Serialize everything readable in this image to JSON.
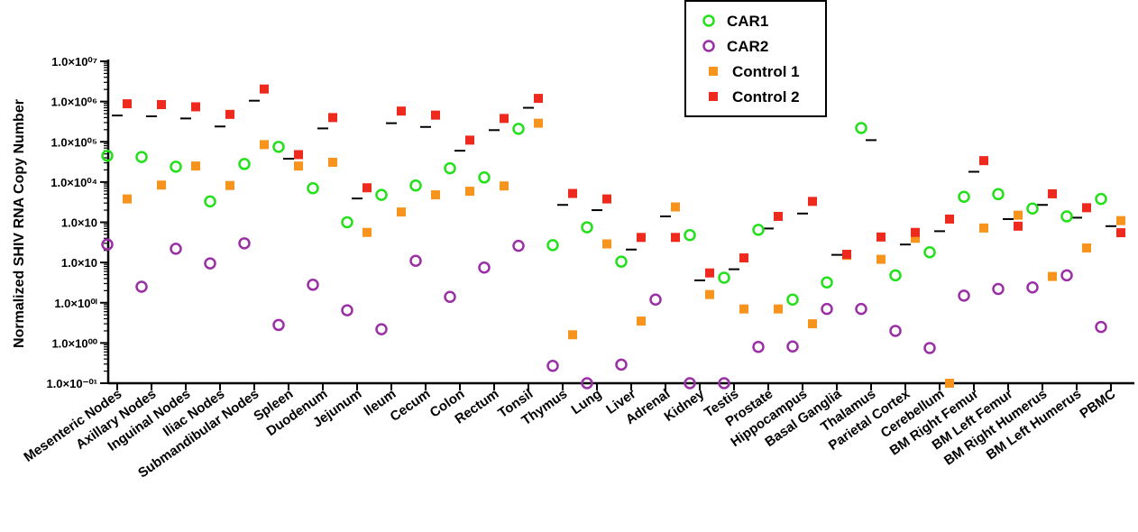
{
  "chart_data": {
    "type": "scatter",
    "title": "",
    "xlabel": "",
    "ylabel": "Normalized SHIV RNA Copy Number",
    "y_scale": "log",
    "ylim": [
      0.1,
      10000000
    ],
    "y_ticks": [
      "1.0×10⁰⁷",
      "1.0×10⁰⁶",
      "1.0×10⁰⁵",
      "1.0×10⁰⁴",
      "1.0×10⁰⁳",
      "1.0×10⁰⁲",
      "1.0×10⁰ⁱ",
      "1.0×10⁰⁰",
      "1.0×10⁻⁰¹"
    ],
    "y_tick_labels": [
      "1.0×10⁰⁷",
      "1.0×10⁰⁶",
      "1.0×10⁰⁵",
      "1.0×10⁰⁴",
      "1.0×10⁰⁳",
      "1.0×10⁰⁲",
      "1.0×10⁰ⁱ",
      "1.0×10⁰⁰",
      "1.0×10⁻⁰¹"
    ],
    "legend_position": "top-center",
    "categories": [
      "Mesenteric Nodes",
      "Axillary Nodes",
      "Inguinal Nodes",
      "Iliac Nodes",
      "Submandibular Nodes",
      "Spleen",
      "Duodenum",
      "Jejunum",
      "Ileum",
      "Cecum",
      "Colon",
      "Rectum",
      "Tonsil",
      "Thymus",
      "Lung",
      "Liver",
      "Adrenal",
      "Kidney",
      "Testis",
      "Prostate",
      "Hippocampus",
      "Basal Ganglia",
      "Thalamus",
      "Parietal Cortex",
      "Cerebellum",
      "BM Right Femur",
      "BM Left Femur",
      "BM Right Humerus",
      "BM Left Humerus",
      "PBMC"
    ],
    "series": [
      {
        "name": "CAR1",
        "marker": "circle",
        "color": "#22e01a",
        "values": [
          45000,
          42000,
          24000,
          3300,
          28000,
          75000,
          7000,
          1000,
          4800,
          8200,
          22000,
          13000,
          210000,
          270,
          750,
          105,
          null,
          480,
          42,
          650,
          12,
          32,
          220000,
          48,
          180,
          4300,
          5000,
          2200,
          1400,
          3800
        ]
      },
      {
        "name": "CAR2",
        "marker": "circle",
        "color": "#9a2fa6",
        "values": [
          280,
          25,
          220,
          95,
          300,
          2.8,
          28,
          6.5,
          2.2,
          110,
          14,
          75,
          260,
          0.27,
          0.1,
          0.29,
          12,
          0.1,
          0.1,
          0.8,
          0.82,
          7,
          7,
          2,
          0.75,
          15,
          22,
          24,
          48,
          2.5
        ]
      },
      {
        "name": "Control 1",
        "marker": "square",
        "color": "#f7941d",
        "values": [
          3800,
          8400,
          25000,
          8200,
          85000,
          25000,
          31000,
          560,
          1800,
          4800,
          5900,
          8000,
          290000,
          1.6,
          290,
          3.5,
          2400,
          16,
          7,
          7,
          3,
          150,
          120,
          400,
          0.1,
          720,
          1500,
          45,
          230,
          1100
        ]
      },
      {
        "name": "Control 2",
        "marker": "square",
        "color": "#ee2a1f",
        "values": [
          880000,
          840000,
          740000,
          480000,
          2050000,
          48000,
          400000,
          7200,
          580000,
          460000,
          110000,
          380000,
          1200000,
          5200,
          3800,
          420,
          420,
          55,
          130,
          1400,
          3300,
          160,
          430,
          560,
          1200,
          34000,
          800,
          5100,
          2300,
          550
        ]
      }
    ],
    "medians": [
      450000,
      430000,
      380000,
      240000,
      1050000,
      38000,
      215000,
      3900,
      290000,
      234000,
      60000,
      195000,
      700000,
      2700,
      2000,
      210,
      1400,
      36,
      68,
      700,
      1650,
      155,
      110000,
      280,
      600,
      18000,
      1200,
      2700,
      1300,
      800
    ]
  },
  "legend": {
    "items": [
      {
        "label": "CAR1",
        "marker": "circle",
        "color": "#22e01a"
      },
      {
        "label": "CAR2",
        "marker": "circle",
        "color": "#9a2fa6"
      },
      {
        "label": "Control 1",
        "marker": "square",
        "color": "#f7941d"
      },
      {
        "label": "Control 2",
        "marker": "square",
        "color": "#ee2a1f"
      }
    ]
  }
}
